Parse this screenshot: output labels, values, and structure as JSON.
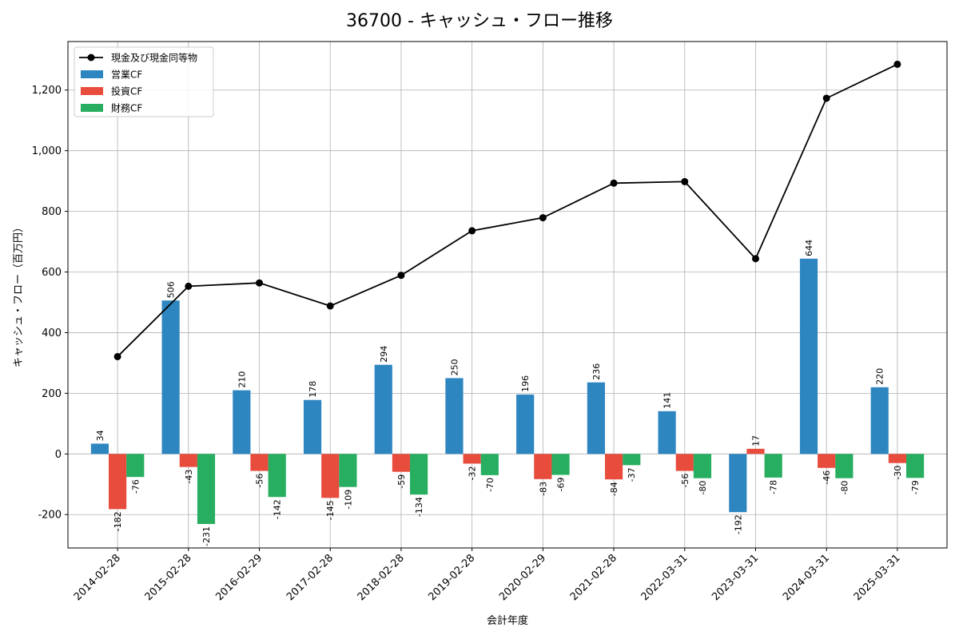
{
  "chart_data": {
    "type": "bar",
    "title": "36700 - キャッシュ・フロー推移",
    "xlabel": "会計年度",
    "ylabel": "キャッシュ・フロー（百万円）",
    "ylim": [
      -310,
      1360
    ],
    "yticks": [
      -200,
      0,
      200,
      400,
      600,
      800,
      1000,
      1200
    ],
    "ytick_labels": [
      "-200",
      "0",
      "200",
      "400",
      "600",
      "800",
      "1,000",
      "1,200"
    ],
    "grid": true,
    "legend_position": "top-left",
    "categories": [
      "2014-02-28",
      "2015-02-28",
      "2016-02-29",
      "2017-02-28",
      "2018-02-28",
      "2019-02-28",
      "2020-02-29",
      "2021-02-28",
      "2022-03-31",
      "2023-03-31",
      "2024-03-31",
      "2025-03-31"
    ],
    "series": [
      {
        "name": "営業CF",
        "kind": "bar",
        "color": "#2e86c1",
        "values": [
          34,
          506,
          210,
          178,
          294,
          250,
          196,
          236,
          141,
          -192,
          644,
          220
        ]
      },
      {
        "name": "投資CF",
        "kind": "bar",
        "color": "#e74c3c",
        "values": [
          -182,
          -43,
          -56,
          -145,
          -59,
          -32,
          -83,
          -84,
          -56,
          17,
          -46,
          -30
        ]
      },
      {
        "name": "財務CF",
        "kind": "bar",
        "color": "#27ae60",
        "values": [
          -76,
          -231,
          -142,
          -109,
          -134,
          -70,
          -69,
          -37,
          -80,
          -78,
          -80,
          -79
        ]
      },
      {
        "name": "現金及び現金同等物",
        "kind": "line",
        "color": "#000000",
        "values": [
          321,
          553,
          564,
          488,
          589,
          736,
          779,
          893,
          898,
          644,
          1173,
          1285
        ]
      }
    ]
  }
}
